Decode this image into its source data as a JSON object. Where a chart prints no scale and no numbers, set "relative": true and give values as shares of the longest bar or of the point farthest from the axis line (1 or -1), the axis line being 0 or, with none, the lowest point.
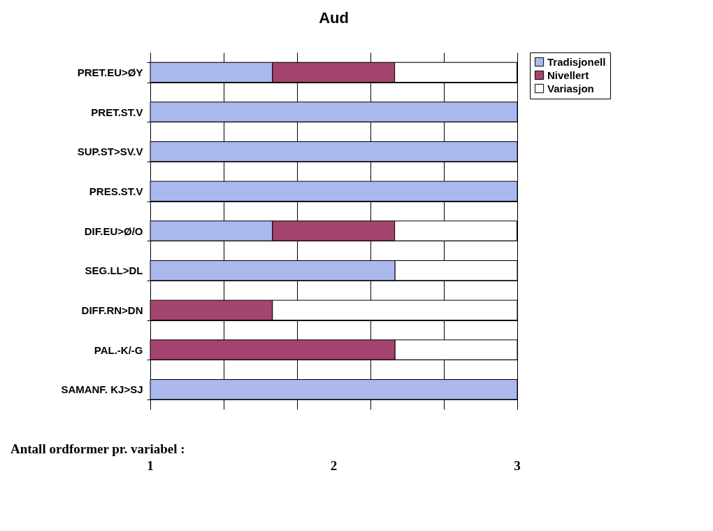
{
  "chart_data": {
    "type": "bar",
    "title": "Aud",
    "orientation": "horizontal",
    "stacked": true,
    "relative": true,
    "grid": true,
    "legend": "right",
    "categories": [
      "PRET.EU>ØY",
      "PRET.ST.V",
      "SUP.ST>SV.V",
      "PRES.ST.V",
      "DIF.EU>Ø/O",
      "SEG.LL>DL",
      "DIFF.RN>DN",
      "PAL.-K/-G",
      "SAMANF. KJ>SJ"
    ],
    "series": [
      {
        "name": "Tradisjonell",
        "color": "#aab8ee",
        "values": [
          0.333,
          1,
          1,
          1,
          0.333,
          0.667,
          null,
          null,
          1
        ]
      },
      {
        "name": "Nivellert",
        "color": "#a3456e",
        "values": [
          0.333,
          null,
          null,
          null,
          0.333,
          null,
          0.333,
          0.667,
          null
        ]
      },
      {
        "name": "Variasjon",
        "color": "#ffffff",
        "values": [
          0.333,
          null,
          null,
          null,
          0.333,
          0.333,
          0.667,
          0.333,
          null
        ]
      }
    ],
    "annotations": [
      "Antall ordformer pr. variabel :",
      "1",
      "2",
      "3"
    ]
  }
}
